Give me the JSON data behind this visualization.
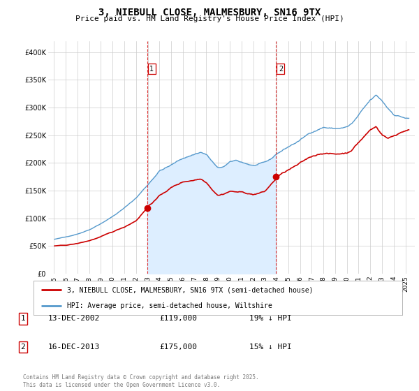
{
  "title": "3, NIEBULL CLOSE, MALMESBURY, SN16 9TX",
  "subtitle": "Price paid vs. HM Land Registry's House Price Index (HPI)",
  "legend_line1": "3, NIEBULL CLOSE, MALMESBURY, SN16 9TX (semi-detached house)",
  "legend_line2": "HPI: Average price, semi-detached house, Wiltshire",
  "sale1_date": "13-DEC-2002",
  "sale1_price": "£119,000",
  "sale1_hpi": "19% ↓ HPI",
  "sale2_date": "16-DEC-2013",
  "sale2_price": "£175,000",
  "sale2_hpi": "15% ↓ HPI",
  "footer": "Contains HM Land Registry data © Crown copyright and database right 2025.\nThis data is licensed under the Open Government Licence v3.0.",
  "red_color": "#cc0000",
  "blue_color": "#5599cc",
  "blue_fill_color": "#ddeeff",
  "vline_color": "#dd3333",
  "ylim": [
    0,
    420000
  ],
  "yticks": [
    0,
    50000,
    100000,
    150000,
    200000,
    250000,
    300000,
    350000,
    400000
  ],
  "ytick_labels": [
    "£0",
    "£50K",
    "£100K",
    "£150K",
    "£200K",
    "£250K",
    "£300K",
    "£350K",
    "£400K"
  ],
  "sale1_x": 2002.96,
  "sale1_y": 119000,
  "sale2_x": 2013.96,
  "sale2_y": 175000,
  "xmin": 1994.5,
  "xmax": 2025.8,
  "background_color": "#ffffff",
  "grid_color": "#cccccc",
  "xtick_years": [
    1995,
    1996,
    1997,
    1998,
    1999,
    2000,
    2001,
    2002,
    2003,
    2004,
    2005,
    2006,
    2007,
    2008,
    2009,
    2010,
    2011,
    2012,
    2013,
    2014,
    2015,
    2016,
    2017,
    2018,
    2019,
    2020,
    2021,
    2022,
    2023,
    2024,
    2025
  ]
}
